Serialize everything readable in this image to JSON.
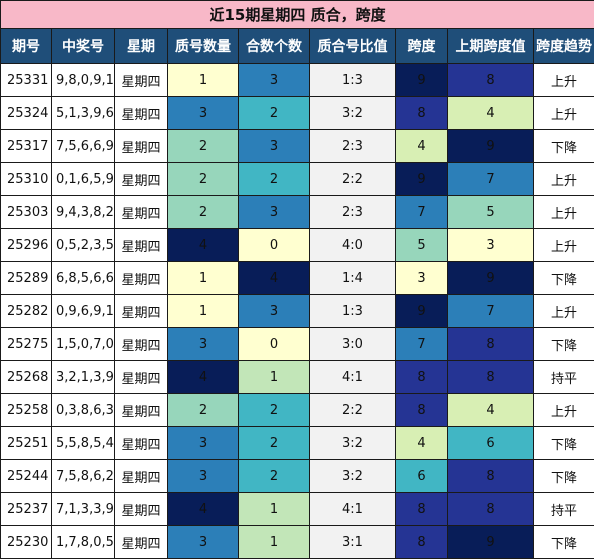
{
  "title": "近15期星期四 质合，跨度",
  "headers": [
    "期号",
    "中奖号",
    "星期",
    "质号数量",
    "合数个数",
    "质合号比值",
    "跨度",
    "上期跨度值",
    "跨度趋势"
  ],
  "rows": [
    {
      "issue": "25331",
      "nums": "9,8,0,9,1",
      "weekday": "星期四",
      "prime": "1",
      "composite": "3",
      "ratio": "1:3",
      "span": "9",
      "prev_span": "8",
      "trend": "上升"
    },
    {
      "issue": "25324",
      "nums": "5,1,3,9,6",
      "weekday": "星期四",
      "prime": "3",
      "composite": "2",
      "ratio": "3:2",
      "span": "8",
      "prev_span": "4",
      "trend": "上升"
    },
    {
      "issue": "25317",
      "nums": "7,5,6,6,9",
      "weekday": "星期四",
      "prime": "2",
      "composite": "3",
      "ratio": "2:3",
      "span": "4",
      "prev_span": "9",
      "trend": "下降"
    },
    {
      "issue": "25310",
      "nums": "0,1,6,5,9",
      "weekday": "星期四",
      "prime": "2",
      "composite": "2",
      "ratio": "2:2",
      "span": "9",
      "prev_span": "7",
      "trend": "上升"
    },
    {
      "issue": "25303",
      "nums": "9,4,3,8,2",
      "weekday": "星期四",
      "prime": "2",
      "composite": "3",
      "ratio": "2:3",
      "span": "7",
      "prev_span": "5",
      "trend": "上升"
    },
    {
      "issue": "25296",
      "nums": "0,5,2,3,5",
      "weekday": "星期四",
      "prime": "4",
      "composite": "0",
      "ratio": "4:0",
      "span": "5",
      "prev_span": "3",
      "trend": "上升"
    },
    {
      "issue": "25289",
      "nums": "6,8,5,6,6",
      "weekday": "星期四",
      "prime": "1",
      "composite": "4",
      "ratio": "1:4",
      "span": "3",
      "prev_span": "9",
      "trend": "下降"
    },
    {
      "issue": "25282",
      "nums": "0,9,6,9,1",
      "weekday": "星期四",
      "prime": "1",
      "composite": "3",
      "ratio": "1:3",
      "span": "9",
      "prev_span": "7",
      "trend": "上升"
    },
    {
      "issue": "25275",
      "nums": "1,5,0,7,0",
      "weekday": "星期四",
      "prime": "3",
      "composite": "0",
      "ratio": "3:0",
      "span": "7",
      "prev_span": "8",
      "trend": "下降"
    },
    {
      "issue": "25268",
      "nums": "3,2,1,3,9",
      "weekday": "星期四",
      "prime": "4",
      "composite": "1",
      "ratio": "4:1",
      "span": "8",
      "prev_span": "8",
      "trend": "持平"
    },
    {
      "issue": "25258",
      "nums": "0,3,8,6,3",
      "weekday": "星期四",
      "prime": "2",
      "composite": "2",
      "ratio": "2:2",
      "span": "8",
      "prev_span": "4",
      "trend": "上升"
    },
    {
      "issue": "25251",
      "nums": "5,5,8,5,4",
      "weekday": "星期四",
      "prime": "3",
      "composite": "2",
      "ratio": "3:2",
      "span": "4",
      "prev_span": "6",
      "trend": "下降"
    },
    {
      "issue": "25244",
      "nums": "7,5,8,6,2",
      "weekday": "星期四",
      "prime": "3",
      "composite": "2",
      "ratio": "3:2",
      "span": "6",
      "prev_span": "8",
      "trend": "下降"
    },
    {
      "issue": "25237",
      "nums": "7,1,3,3,9",
      "weekday": "星期四",
      "prime": "4",
      "composite": "1",
      "ratio": "4:1",
      "span": "8",
      "prev_span": "8",
      "trend": "持平"
    },
    {
      "issue": "25230",
      "nums": "1,7,8,0,5",
      "weekday": "星期四",
      "prime": "3",
      "composite": "1",
      "ratio": "3:1",
      "span": "8",
      "prev_span": "9",
      "trend": "下降"
    }
  ],
  "colors": {
    "title_bg": "#f8b8c8",
    "header_bg": "#1f4e79",
    "scale": [
      "#ffffd0",
      "#d8efb4",
      "#c2e6b8",
      "#97d6bb",
      "#41b6c4",
      "#2c7fb8",
      "#253494",
      "#081d58"
    ]
  }
}
